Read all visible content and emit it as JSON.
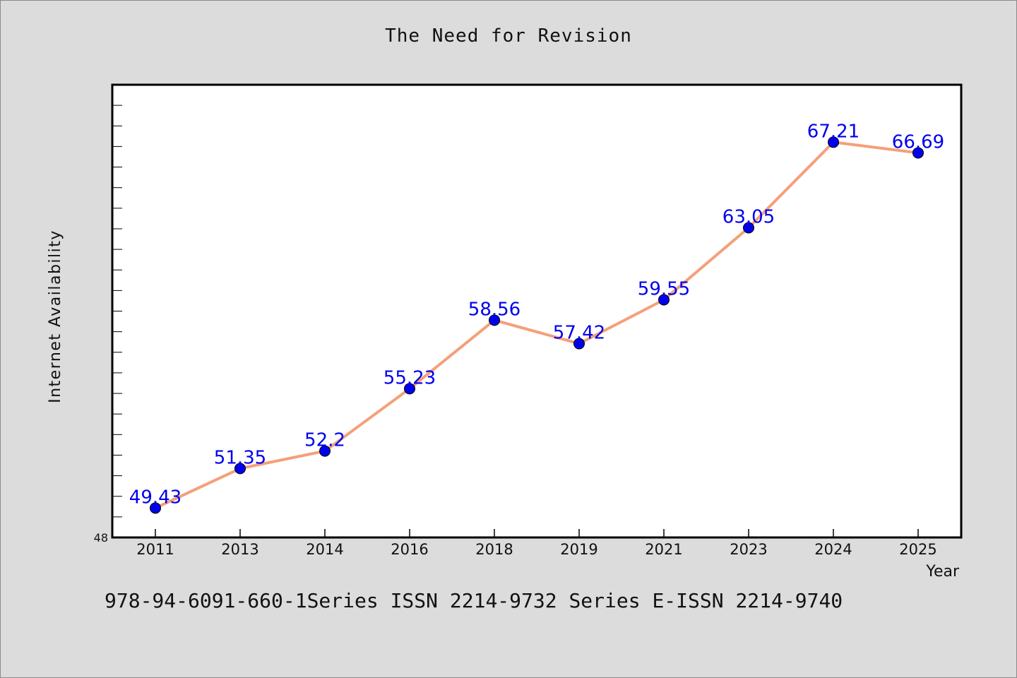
{
  "chart_data": {
    "type": "line",
    "title": "The Need for Revision",
    "xlabel": "Year",
    "ylabel": "Internet Availability",
    "categories": [
      "2011",
      "2013",
      "2014",
      "2016",
      "2018",
      "2019",
      "2021",
      "2023",
      "2024",
      "2025"
    ],
    "series": [
      {
        "values": [
          49.43,
          51.35,
          52.2,
          55.23,
          58.56,
          57.42,
          59.55,
          63.05,
          67.21,
          66.69
        ],
        "data_labels": [
          "49.43",
          "51.35",
          "52.2",
          "55.23",
          "58.56",
          "57.42",
          "59.55",
          "63.05",
          "67.21",
          "66.69"
        ],
        "line_color": "#f4a07a",
        "marker_color": "#0000ee"
      }
    ],
    "y_tick_labels": [
      "48"
    ],
    "ylim": [
      48,
      70
    ],
    "grid": false,
    "label_color": "#0000ee"
  },
  "footer": "978-94-6091-660-1Series ISSN 2214-9732 Series E-ISSN 2214-9740",
  "colors": {
    "background": "#dcdcdc",
    "plot_background": "#ffffff"
  }
}
